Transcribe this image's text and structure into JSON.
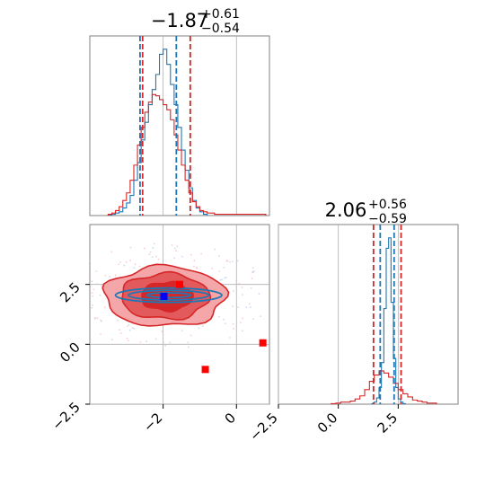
{
  "colors": {
    "red": "#d62728",
    "blue": "#1f77b4",
    "red_fill": "#f4a6a8",
    "red_mid": "#e35a5d",
    "grid": "#b0b0b0",
    "frame": "#808080"
  },
  "chart_data": {
    "type": "corner",
    "parameters": 2,
    "panels": [
      {
        "id": "hist-param-1",
        "type": "histogram",
        "title": {
          "main": "−1.87",
          "sup": "+0.61",
          "sub": "−0.54"
        },
        "xlim": [
          -4.0,
          0.9
        ],
        "grid": true,
        "series": [
          {
            "name": "",
            "color": "#1f77b4",
            "bin_edges": [
              -3.5,
              -3.4,
              -3.3,
              -3.2,
              -3.1,
              -3.0,
              -2.9,
              -2.8,
              -2.7,
              -2.6,
              -2.5,
              -2.4,
              -2.3,
              -2.2,
              -2.1,
              -2.0,
              -1.9,
              -1.8,
              -1.7,
              -1.6,
              -1.5,
              -1.4,
              -1.3,
              -1.2,
              -1.1,
              -1.0,
              -0.9,
              -0.8
            ],
            "counts": [
              0.5,
              1,
              2,
              3,
              6,
              10,
              16,
              28,
              42,
              60,
              74,
              88,
              100,
              112,
              128,
              132,
              120,
              104,
              88,
              70,
              52,
              36,
              22,
              12,
              6,
              3,
              1
            ]
          },
          {
            "name": "",
            "color": "#d62728",
            "bin_edges": [
              -3.5,
              -3.4,
              -3.3,
              -3.2,
              -3.1,
              -3.0,
              -2.9,
              -2.8,
              -2.7,
              -2.6,
              -2.5,
              -2.4,
              -2.3,
              -2.2,
              -2.1,
              -2.0,
              -1.9,
              -1.8,
              -1.7,
              -1.6,
              -1.5,
              -1.4,
              -1.3,
              -1.2,
              -1.1,
              -1.0,
              -0.9,
              -0.8,
              -0.7,
              -0.6,
              -0.5,
              -0.4,
              -0.3,
              -0.2,
              -0.1,
              0.0,
              0.1,
              0.2,
              0.3,
              0.4,
              0.5,
              0.6,
              0.7,
              0.8
            ],
            "counts": [
              1,
              2,
              4,
              7,
              12,
              18,
              28,
              40,
              56,
              70,
              82,
              90,
              96,
              95,
              92,
              88,
              84,
              76,
              64,
              52,
              40,
              28,
              18,
              11,
              7,
              4,
              3,
              2,
              2,
              1,
              1,
              1,
              1,
              1,
              1,
              1,
              1,
              1,
              1,
              1,
              1,
              1,
              1
            ]
          }
        ],
        "quantile_lines": [
          {
            "color": "#1f77b4",
            "values": [
              -2.63,
              -1.64
            ]
          },
          {
            "color": "#d62728",
            "values": [
              -2.56,
              -1.26
            ]
          }
        ]
      },
      {
        "id": "contour-2d",
        "type": "contour",
        "xlim": [
          -4.0,
          0.9
        ],
        "ylim": [
          -2.5,
          5.0
        ],
        "xticks": [
          "−2",
          "0"
        ],
        "yticks": [
          "−2.5",
          "0.0",
          "2.5"
        ],
        "xtick_values": [
          -2,
          0
        ],
        "ytick_values": [
          -2.5,
          0.0,
          2.5
        ],
        "grid": true,
        "red_regions": [
          {
            "level": "outer",
            "cx": -1.95,
            "cy": 2.0,
            "rx": 1.65,
            "ry": 1.25
          },
          {
            "level": "middle",
            "cx": -1.95,
            "cy": 2.0,
            "rx": 1.2,
            "ry": 0.95
          },
          {
            "level": "inner",
            "cx": -1.9,
            "cy": 2.0,
            "rx": 0.7,
            "ry": 0.6
          }
        ],
        "blue_contours": [
          {
            "cx": -1.85,
            "cy": 2.05,
            "rx": 1.45,
            "ry": 0.3
          },
          {
            "cx": -1.85,
            "cy": 2.05,
            "rx": 1.1,
            "ry": 0.2
          },
          {
            "cx": -1.85,
            "cy": 2.05,
            "rx": 0.6,
            "ry": 0.1
          }
        ],
        "markers": [
          {
            "color": "#1f77b4",
            "x": -1.98,
            "y": 1.95
          },
          {
            "color": "#0000ff",
            "x": -1.98,
            "y": 2.0
          },
          {
            "color": "#ff0000",
            "x": -1.55,
            "y": 2.5
          },
          {
            "color": "#ff0000",
            "x": 0.72,
            "y": 0.06
          },
          {
            "color": "#ff0000",
            "x": -0.85,
            "y": -1.05
          }
        ]
      },
      {
        "id": "hist-param-2",
        "type": "histogram",
        "title": {
          "main": "2.06",
          "sup": "+0.56",
          "sub": "−0.59"
        },
        "xlim": [
          -2.5,
          5.0
        ],
        "xticks": [
          "−2.5",
          "0.0",
          "2.5"
        ],
        "xtick_values": [
          -2.5,
          0.0,
          2.5
        ],
        "grid": true,
        "series": [
          {
            "name": "",
            "color": "#1f77b4",
            "bin_edges": [
              1.4,
              1.5,
              1.6,
              1.7,
              1.8,
              1.9,
              2.0,
              2.1,
              2.2,
              2.3,
              2.4,
              2.5,
              2.6,
              2.7,
              2.8
            ],
            "counts": [
              0.5,
              2,
              6,
              16,
              40,
              92,
              150,
              160,
              98,
              44,
              16,
              5,
              2,
              0.5
            ]
          },
          {
            "name": "",
            "color": "#d62728",
            "bin_edges": [
              -0.3,
              -0.1,
              0.1,
              0.3,
              0.5,
              0.7,
              0.9,
              1.1,
              1.3,
              1.5,
              1.7,
              1.9,
              2.1,
              2.3,
              2.5,
              2.7,
              2.9,
              3.1,
              3.3,
              3.5,
              3.7,
              3.9,
              4.1
            ],
            "counts": [
              0.5,
              1,
              2,
              2,
              3,
              5,
              8,
              14,
              22,
              28,
              32,
              30,
              26,
              20,
              14,
              10,
              7,
              4,
              3,
              2,
              1,
              1
            ]
          }
        ],
        "quantile_lines": [
          {
            "color": "#1f77b4",
            "values": [
              1.75,
              2.33
            ]
          },
          {
            "color": "#d62728",
            "values": [
              1.47,
              2.62
            ]
          }
        ]
      }
    ]
  }
}
